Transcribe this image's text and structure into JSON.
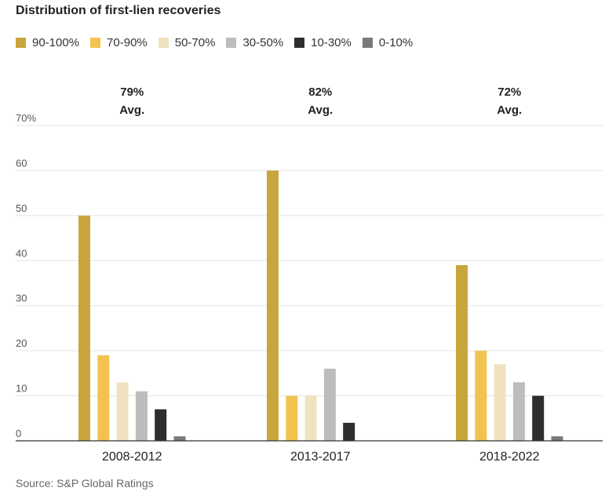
{
  "chart_data": {
    "type": "bar",
    "title": "Distribution of first-lien recoveries",
    "categories": [
      "2008-2012",
      "2013-2017",
      "2018-2022"
    ],
    "averages": [
      "79%",
      "82%",
      "72%"
    ],
    "avg_label": "Avg.",
    "series": [
      {
        "name": "90-100%",
        "color": "#c8a63d",
        "values": [
          50,
          60,
          39
        ]
      },
      {
        "name": "70-90%",
        "color": "#f2c44f",
        "values": [
          19,
          10,
          20
        ]
      },
      {
        "name": "50-70%",
        "color": "#efe3bf",
        "values": [
          13,
          10,
          17
        ]
      },
      {
        "name": "30-50%",
        "color": "#bdbdbd",
        "values": [
          11,
          16,
          13
        ]
      },
      {
        "name": "10-30%",
        "color": "#2e2e2e",
        "values": [
          7,
          4,
          10
        ]
      },
      {
        "name": "0-10%",
        "color": "#7a7a7a",
        "values": [
          1,
          0,
          1
        ]
      }
    ],
    "y_ticks": [
      "0",
      "10",
      "20",
      "30",
      "40",
      "50",
      "60",
      "70%"
    ],
    "ylim": [
      0,
      70
    ],
    "grid": true,
    "legend_position": "top-left"
  },
  "source": "Source: S&P Global Ratings"
}
